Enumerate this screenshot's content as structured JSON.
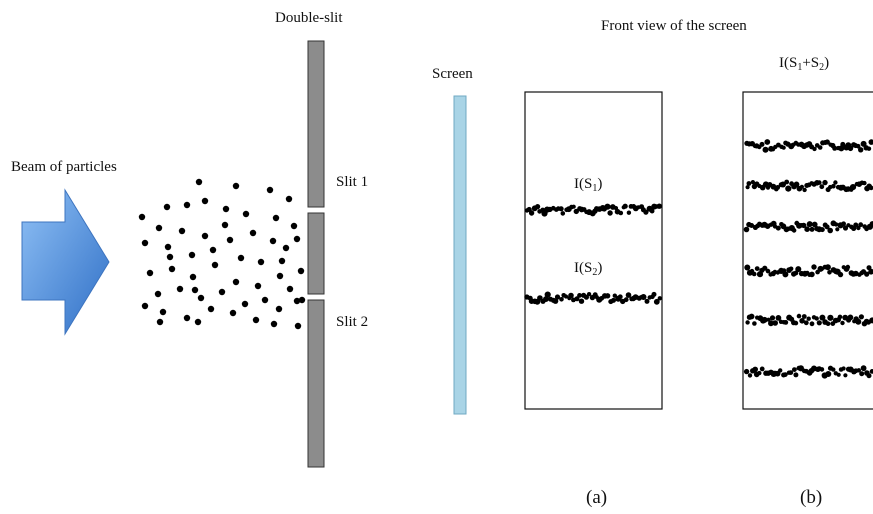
{
  "labels": {
    "double_slit": "Double-slit",
    "front_view": "Front view of the screen",
    "screen": "Screen",
    "beam": "Beam of particles",
    "slit1": "Slit 1",
    "slit2": "Slit 2",
    "i_s1": {
      "prefix": "I(S",
      "sub": "1",
      "suffix": ")"
    },
    "i_s2": {
      "prefix": "I(S",
      "sub": "2",
      "suffix": ")"
    },
    "i_sum": {
      "prefix": "I(S",
      "sub1": "1",
      "mid": "+S",
      "sub2": "2",
      "suffix": ")"
    },
    "panel_a": "(a)",
    "panel_b": "(b)"
  },
  "colors": {
    "arrow": "#4f8fe0",
    "screen_bar": "#a9d4e6",
    "slit_wall": "#8c8c8c",
    "particle": "#000000"
  },
  "panel_a_bands": 2,
  "panel_b_bands": 6
}
